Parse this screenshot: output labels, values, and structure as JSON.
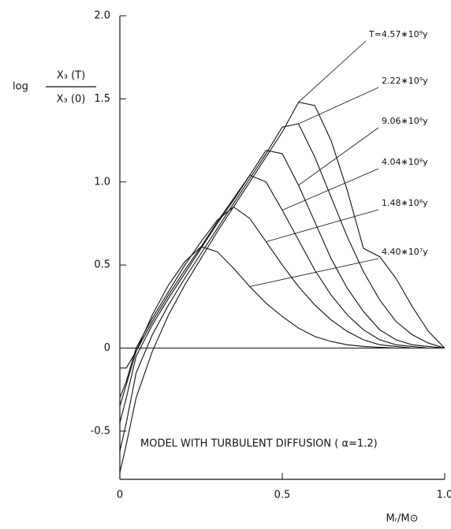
{
  "chart_data": {
    "type": "line",
    "ylabel": {
      "prefix": "log",
      "numerator": "X₃ (T)",
      "denominator": "X₃ (0)"
    },
    "xlabel": "Mᵣ/M⊙",
    "annotation": "MODEL WITH TURBULENT DIFFUSION ( α=1.2)",
    "color": "#111111",
    "zero_line": true,
    "xlim": [
      0,
      1
    ],
    "xticks": [
      0,
      0.5,
      {
        "value": 1,
        "label": "1.0"
      }
    ],
    "ylim": [
      -0.79,
      2.0
    ],
    "yticks": [
      -0.5,
      0,
      0.5,
      {
        "value": 1,
        "label": "1.0"
      },
      1.5,
      {
        "value": 2,
        "label": "2.0"
      }
    ],
    "x": [
      0,
      0.02,
      0.05,
      0.1,
      0.15,
      0.2,
      0.25,
      0.3,
      0.35,
      0.4,
      0.45,
      0.5,
      0.55,
      0.6,
      0.65,
      0.7,
      0.75,
      0.8,
      0.85,
      0.9,
      0.95,
      1.0
    ],
    "series": [
      {
        "name": "T=4.57∗10⁹y",
        "values": [
          -0.75,
          -0.58,
          -0.3,
          -0.02,
          0.2,
          0.38,
          0.54,
          0.7,
          0.85,
          1.0,
          1.15,
          1.3,
          1.48,
          1.46,
          1.25,
          0.95,
          0.6,
          0.55,
          0.42,
          0.25,
          0.1,
          0
        ]
      },
      {
        "name": "2.22∗10⁹y",
        "values": [
          -0.62,
          -0.45,
          -0.15,
          0.08,
          0.26,
          0.42,
          0.57,
          0.72,
          0.87,
          1.02,
          1.17,
          1.33,
          1.35,
          1.15,
          0.91,
          0.67,
          0.46,
          0.29,
          0.16,
          0.08,
          0.03,
          0
        ]
      },
      {
        "name": "9.06∗10⁸y",
        "values": [
          -0.45,
          -0.3,
          -0.05,
          0.14,
          0.3,
          0.45,
          0.6,
          0.75,
          0.89,
          1.04,
          1.19,
          1.17,
          0.98,
          0.76,
          0.54,
          0.36,
          0.22,
          0.11,
          0.05,
          0.02,
          0.01,
          0
        ]
      },
      {
        "name": "4.04∗10⁸y",
        "values": [
          -0.35,
          -0.22,
          -0.02,
          0.16,
          0.32,
          0.47,
          0.61,
          0.76,
          0.9,
          1.04,
          1.0,
          0.83,
          0.65,
          0.47,
          0.32,
          0.2,
          0.11,
          0.05,
          0.02,
          0.01,
          0,
          0
        ]
      },
      {
        "name": "1.48∗10⁸y",
        "values": [
          -0.3,
          -0.2,
          0,
          0.18,
          0.34,
          0.5,
          0.64,
          0.77,
          0.85,
          0.78,
          0.64,
          0.5,
          0.37,
          0.26,
          0.17,
          0.1,
          0.05,
          0.02,
          0.01,
          0,
          0,
          0
        ]
      },
      {
        "name": "4.40∗10⁷y",
        "values": [
          -0.12,
          -0.12,
          -0.02,
          0.2,
          0.38,
          0.52,
          0.61,
          0.58,
          0.48,
          0.37,
          0.27,
          0.19,
          0.12,
          0.07,
          0.04,
          0.02,
          0.01,
          0.005,
          0,
          0,
          0,
          0
        ]
      }
    ]
  }
}
